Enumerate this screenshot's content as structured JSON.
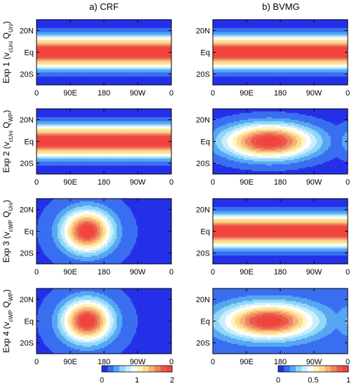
{
  "columns": [
    "a) CRF",
    "b) BVMG"
  ],
  "rows": [
    {
      "label": "Exp 1",
      "sub1": "cUni",
      "sub2": "Uni"
    },
    {
      "label": "Exp 2",
      "sub1": "cUni",
      "sub2": "WP"
    },
    {
      "label": "Exp 3",
      "sub1": "cWP",
      "sub2": "Uni"
    },
    {
      "label": "Exp 4",
      "sub1": "cWP",
      "sub2": "WP"
    }
  ],
  "chart_data": {
    "type": "heatmap",
    "x_ticks": [
      "0",
      "90E",
      "180",
      "90W",
      "0"
    ],
    "y_ticks": [
      "20N",
      "Eq",
      "20S"
    ],
    "colorbars": [
      {
        "column": "a) CRF",
        "ticks": [
          "0",
          "1",
          "2"
        ],
        "range": [
          0,
          2
        ]
      },
      {
        "column": "b) BVMG",
        "ticks": [
          "0",
          "0.5",
          "1"
        ],
        "range": [
          0,
          1
        ]
      }
    ],
    "panels": [
      {
        "row": "Exp 1",
        "column": "a) CRF",
        "pattern": "zonal",
        "peak": 2.0,
        "background": 0.0,
        "peak_lon": 150
      },
      {
        "row": "Exp 1",
        "column": "b) BVMG",
        "pattern": "zonal",
        "peak": 1.0,
        "background": 0.0,
        "peak_lon": 150
      },
      {
        "row": "Exp 2",
        "column": "a) CRF",
        "pattern": "zonal",
        "peak": 2.0,
        "background": 0.0,
        "peak_lon": 150
      },
      {
        "row": "Exp 2",
        "column": "b) BVMG",
        "pattern": "elongated-ellipse",
        "peak": 1.0,
        "background": 0.05,
        "peak_lon": 150
      },
      {
        "row": "Exp 3",
        "column": "a) CRF",
        "pattern": "warm-pool-blob",
        "peak": 2.0,
        "background": 0.15,
        "peak_lon": 135
      },
      {
        "row": "Exp 3",
        "column": "b) BVMG",
        "pattern": "zonal",
        "peak": 1.0,
        "background": 0.0,
        "peak_lon": 150
      },
      {
        "row": "Exp 4",
        "column": "a) CRF",
        "pattern": "warm-pool-blob",
        "peak": 2.0,
        "background": 0.15,
        "peak_lon": 135
      },
      {
        "row": "Exp 4",
        "column": "b) BVMG",
        "pattern": "elongated-ellipse",
        "peak": 1.0,
        "background": 0.1,
        "peak_lon": 150
      }
    ]
  }
}
